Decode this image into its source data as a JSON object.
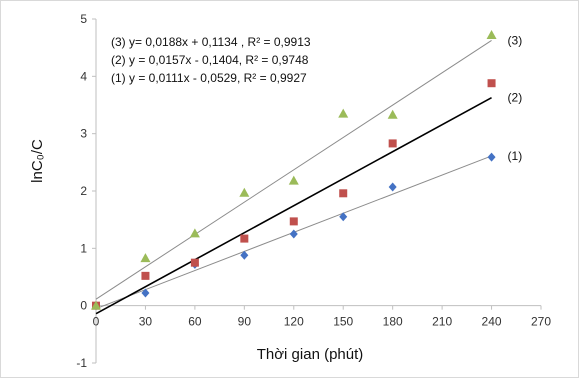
{
  "chart_data": {
    "type": "scatter",
    "title": "",
    "xlabel": "Thời gian (phút)",
    "ylabel": "lnC₀/C",
    "xlim": [
      0,
      270
    ],
    "ylim": [
      -1,
      5
    ],
    "x_ticks": [
      0,
      30,
      60,
      90,
      120,
      150,
      180,
      210,
      240,
      270
    ],
    "y_ticks": [
      -1,
      0,
      1,
      2,
      3,
      4,
      5
    ],
    "grid": false,
    "legend": "top-left equations",
    "series": [
      {
        "name": "(1)",
        "label": "(1)",
        "marker": "diamond",
        "color": "#4472c4",
        "trend_color": "#8c8c8c",
        "equation": "(1)   y = 0,0111x - 0,0529, R² = 0,9927",
        "slope": 0.0111,
        "intercept": -0.0529,
        "x": [
          0,
          30,
          60,
          90,
          120,
          150,
          180,
          240
        ],
        "y": [
          0,
          0.22,
          0.72,
          0.88,
          1.25,
          1.55,
          2.07,
          2.59
        ]
      },
      {
        "name": "(2)",
        "label": "(2)",
        "marker": "square",
        "color": "#c0504d",
        "trend_color": "#000000",
        "equation": "(2)   y = 0,0157x - 0,1404, R² = 0,9748",
        "slope": 0.0157,
        "intercept": -0.1404,
        "x": [
          0,
          30,
          60,
          90,
          120,
          150,
          180,
          240
        ],
        "y": [
          0,
          0.52,
          0.75,
          1.17,
          1.47,
          1.96,
          2.83,
          3.88
        ]
      },
      {
        "name": "(3)",
        "label": "(3)",
        "marker": "triangle",
        "color": "#9bbb59",
        "trend_color": "#8c8c8c",
        "equation": "(3)   y= 0,0188x + 0,1134 , R² = 0,9913",
        "slope": 0.0188,
        "intercept": 0.1134,
        "x": [
          0,
          30,
          60,
          90,
          120,
          150,
          180,
          240
        ],
        "y": [
          0,
          0.83,
          1.26,
          1.97,
          2.18,
          3.35,
          3.33,
          4.72
        ]
      }
    ]
  }
}
